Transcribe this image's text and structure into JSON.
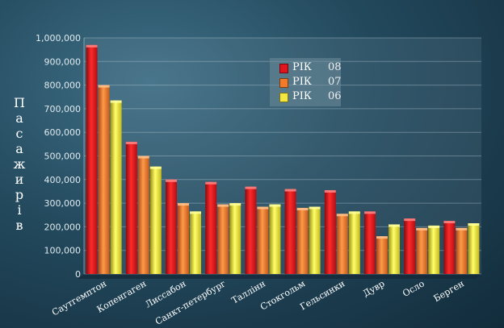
{
  "chart_data": {
    "type": "bar",
    "ylabel": "Пасажирів",
    "ylim": [
      0,
      1000000
    ],
    "yticks": [
      "0",
      "100,000",
      "200,000",
      "300,000",
      "400,000",
      "500,000",
      "600,000",
      "700,000",
      "800,000",
      "900,000",
      "1,000,000"
    ],
    "categories": [
      "Саутгемптон",
      "Копенгаген",
      "Лиссабон",
      "Санкт-петербург",
      "Таллінн",
      "Стокгольм",
      "Гельсинки",
      "Дувр",
      "Осло",
      "Берген"
    ],
    "series": [
      {
        "name": "РІК 08",
        "color": "#e0141c",
        "values": [
          970000,
          560000,
          400000,
          390000,
          370000,
          360000,
          355000,
          265000,
          235000,
          225000
        ]
      },
      {
        "name": "РІК 07",
        "color": "#f07a2a",
        "values": [
          800000,
          500000,
          300000,
          295000,
          285000,
          280000,
          255000,
          160000,
          195000,
          195000
        ]
      },
      {
        "name": "РІК 06",
        "color": "#f2e640",
        "values": [
          735000,
          455000,
          265000,
          300000,
          295000,
          285000,
          265000,
          210000,
          205000,
          215000
        ]
      }
    ],
    "grid": true,
    "legend_position": "top-center"
  },
  "legend": [
    {
      "label": "РІК",
      "year": "08",
      "color": "#e0141c"
    },
    {
      "label": "РІК",
      "year": "07",
      "color": "#f07a2a"
    },
    {
      "label": "РІК",
      "year": "06",
      "color": "#f2e640"
    }
  ]
}
